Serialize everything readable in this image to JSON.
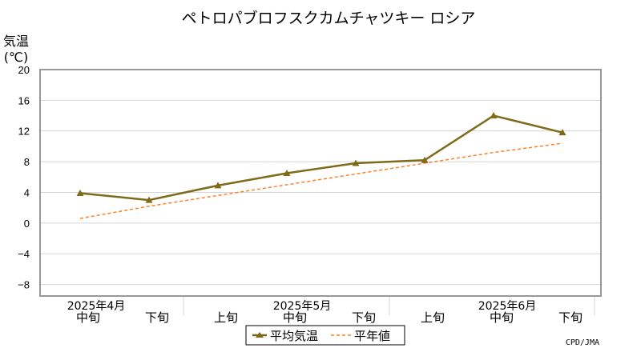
{
  "chart_data": {
    "type": "line",
    "title": "ペトロパブロフスクカムチャツキー ロシア",
    "ylabel": "気温",
    "yunit": "(℃)",
    "ylim": [
      -9.5,
      20
    ],
    "yticks": [
      20,
      16,
      12,
      8,
      4,
      0,
      -4,
      -8
    ],
    "ytick_labels": [
      "20",
      "16",
      "12",
      "8",
      "4",
      "0",
      "−4",
      "−8"
    ],
    "x_labels": [
      "中旬",
      "下旬",
      "上旬",
      "中旬",
      "下旬",
      "上旬",
      "中旬",
      "下旬"
    ],
    "month_labels": [
      "2025年4月",
      "2025年5月",
      "2025年6月"
    ],
    "grid": true,
    "legend_position": "bottom-center",
    "series": [
      {
        "name": "平均気温",
        "values": [
          3.9,
          3.0,
          4.9,
          6.5,
          7.8,
          8.2,
          14.0,
          11.8
        ],
        "color": "#7f6a18",
        "style": "solid",
        "marker": "triangle"
      },
      {
        "name": "平年値",
        "values": [
          0.6,
          2.2,
          3.6,
          5.0,
          6.4,
          7.8,
          9.2,
          10.4
        ],
        "color": "#ff7f27",
        "style": "dashed"
      }
    ],
    "credit": "CPD/JMA"
  }
}
